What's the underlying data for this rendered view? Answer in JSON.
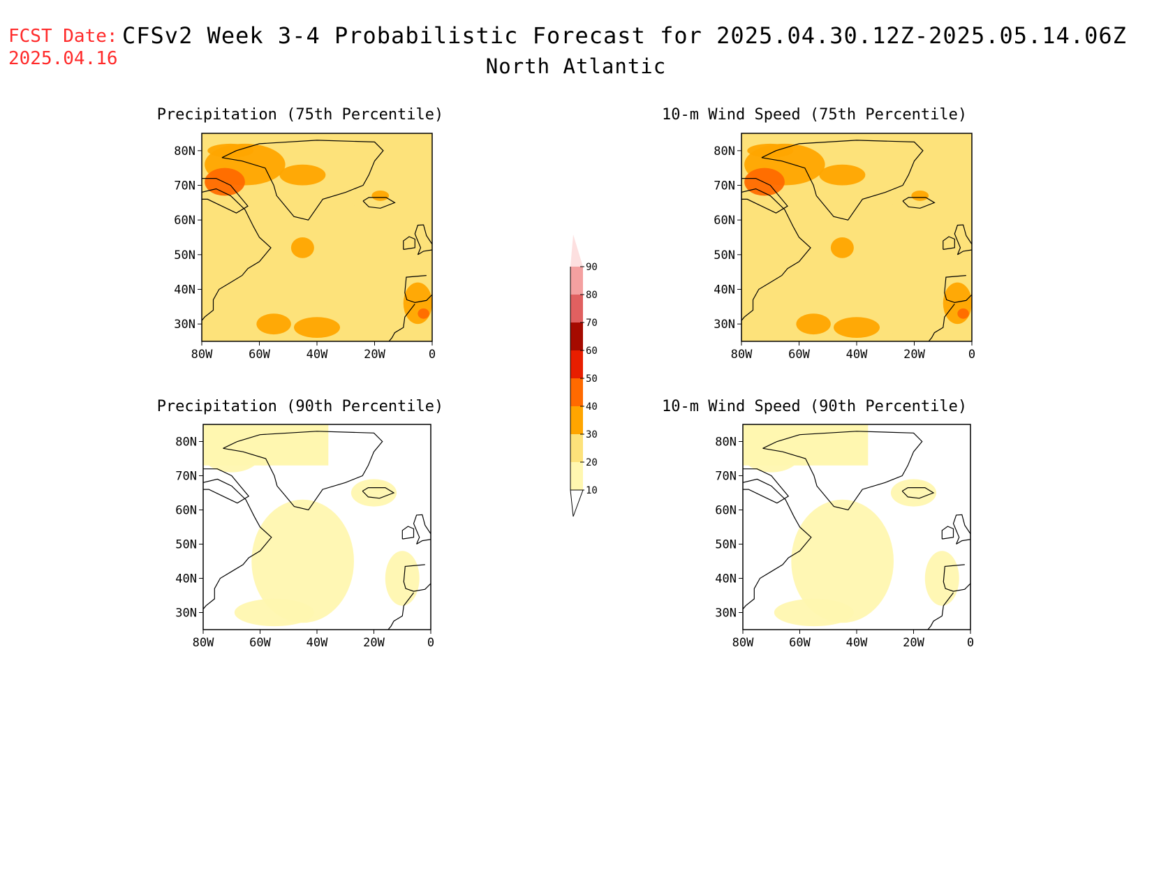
{
  "header": {
    "fcst_label": "FCST Date:",
    "fcst_date": "2025.04.16",
    "title": "CFSv2 Week 3-4 Probabilistic Forecast for 2025.04.30.12Z-2025.05.14.06Z",
    "region": "North Atlantic"
  },
  "axes": {
    "lat_labels": [
      "80N",
      "70N",
      "60N",
      "50N",
      "40N",
      "30N"
    ],
    "lat_values": [
      80,
      70,
      60,
      50,
      40,
      30
    ],
    "lon_labels": [
      "80W",
      "60W",
      "40W",
      "20W",
      "0"
    ],
    "lon_values": [
      -80,
      -60,
      -40,
      -20,
      0
    ],
    "lat_range": [
      25,
      85
    ],
    "lon_range": [
      -80,
      0
    ]
  },
  "panels": [
    {
      "id": "precip-75",
      "title": "Precipitation (75th Percentile)",
      "intensity": "high"
    },
    {
      "id": "wind-75",
      "title": "10-m Wind Speed (75th Percentile)",
      "intensity": "high"
    },
    {
      "id": "precip-90",
      "title": "Precipitation (90th Percentile)",
      "intensity": "low"
    },
    {
      "id": "wind-90",
      "title": "10-m Wind Speed (90th Percentile)",
      "intensity": "low"
    }
  ],
  "colorbar": {
    "levels": [
      "10",
      "20",
      "30",
      "40",
      "50",
      "60",
      "70",
      "80",
      "90"
    ],
    "colors": [
      "#fff7b0",
      "#fde27a",
      "#ffa500",
      "#ff6a00",
      "#e81e00",
      "#a50a00",
      "#e06060",
      "#f4a0a0",
      "#fde0e0"
    ]
  }
}
